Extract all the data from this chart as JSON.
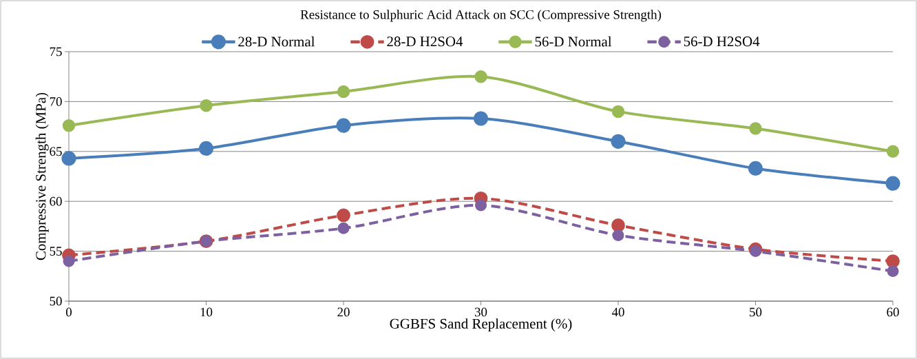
{
  "chart_data": {
    "type": "line",
    "title": "Resistance to Sulphuric Acid Attack on SCC (Compressive Strength)",
    "xlabel": "GGBFS Sand Replacement (%)",
    "ylabel": "Compressive Strength (MPa)",
    "x": [
      0,
      10,
      20,
      30,
      40,
      50,
      60
    ],
    "xlim": [
      0,
      60
    ],
    "xticks": [
      0,
      10,
      20,
      30,
      40,
      50,
      60
    ],
    "ylim": [
      50,
      75
    ],
    "yticks": [
      50,
      55,
      60,
      65,
      70,
      75
    ],
    "grid": "y",
    "legend": "top",
    "marker": "circle",
    "series": [
      {
        "name": "28-D Normal",
        "color": "#4a7ebb",
        "line_style": "solid",
        "values": [
          64.3,
          65.3,
          67.6,
          68.3,
          66.0,
          63.3,
          61.8
        ]
      },
      {
        "name": "28-D H2SO4",
        "color": "#be4b48",
        "line_style": "dashed",
        "values": [
          54.6,
          56.0,
          58.6,
          60.3,
          57.6,
          55.2,
          54.0
        ]
      },
      {
        "name": "56-D Normal",
        "color": "#98b954",
        "line_style": "solid",
        "values": [
          67.6,
          69.6,
          71.0,
          72.5,
          69.0,
          67.3,
          65.0
        ]
      },
      {
        "name": "56-D H2SO4",
        "color": "#7d60a0",
        "line_style": "dashed",
        "values": [
          54.0,
          56.0,
          57.3,
          59.6,
          56.6,
          55.0,
          53.0
        ]
      }
    ]
  }
}
